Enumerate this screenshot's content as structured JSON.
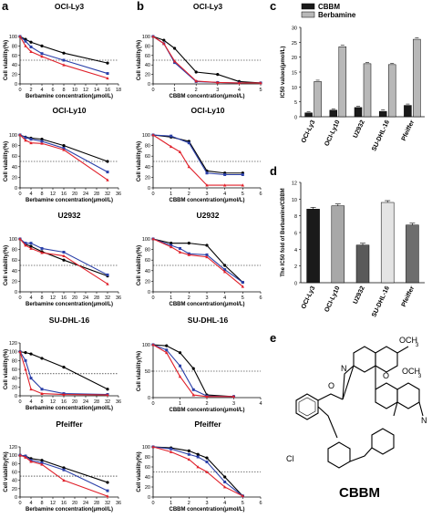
{
  "figure": {
    "panel_letters": [
      "a",
      "b",
      "c",
      "d",
      "e"
    ],
    "structure_label": "CBBM",
    "structure_substituents": {
      "methoxy": "OCH",
      "methoxy_subscript": "3",
      "nitrogen": "N",
      "oxygen": "O",
      "chlorine": "Cl"
    }
  },
  "colors": {
    "black": "#000000",
    "blue": "#2a3fa8",
    "red": "#e0202a",
    "bar_dark": "#1a1a1a",
    "bar_light": "#b8b8b8"
  },
  "chart_data": [
    {
      "id": "a1",
      "type": "line",
      "title": "OCI-Ly3",
      "xlabel": "Berbamine concentration(μmol/L)",
      "ylabel": "Cell viability(%)",
      "xlim": [
        0,
        18
      ],
      "ylim": [
        0,
        100
      ],
      "xticks": [
        0,
        2,
        4,
        6,
        8,
        10,
        12,
        14,
        16,
        18
      ],
      "yticks": [
        0,
        20,
        40,
        60,
        80,
        100
      ],
      "reference_line": 50,
      "series": [
        {
          "color": "black",
          "x": [
            0,
            1,
            2,
            4,
            8,
            16
          ],
          "y": [
            100,
            94,
            88,
            80,
            65,
            44
          ]
        },
        {
          "color": "blue",
          "x": [
            0,
            1,
            2,
            4,
            8,
            16
          ],
          "y": [
            100,
            90,
            78,
            64,
            50,
            22
          ]
        },
        {
          "color": "red",
          "x": [
            0,
            1,
            2,
            4,
            8,
            16
          ],
          "y": [
            100,
            80,
            68,
            58,
            40,
            12
          ]
        }
      ]
    },
    {
      "id": "b1",
      "type": "line",
      "title": "OCI-Ly3",
      "xlabel": "CBBM concentration(μmol/L)",
      "ylabel": "Cell viability(%)",
      "xlim": [
        0,
        5
      ],
      "ylim": [
        0,
        100
      ],
      "xticks": [
        0,
        1,
        2,
        3,
        4,
        5
      ],
      "yticks": [
        0,
        20,
        40,
        60,
        80,
        100
      ],
      "reference_line": 50,
      "series": [
        {
          "color": "black",
          "x": [
            0,
            0.5,
            1,
            2,
            3,
            4,
            5
          ],
          "y": [
            100,
            92,
            75,
            25,
            20,
            5,
            2
          ]
        },
        {
          "color": "blue",
          "x": [
            0,
            0.5,
            1,
            2,
            3,
            4,
            5
          ],
          "y": [
            100,
            85,
            45,
            5,
            3,
            2,
            2
          ]
        },
        {
          "color": "red",
          "x": [
            0,
            0.5,
            1,
            2,
            3,
            4,
            5
          ],
          "y": [
            100,
            85,
            48,
            6,
            3,
            2,
            2
          ]
        }
      ]
    },
    {
      "id": "a2",
      "type": "line",
      "title": "OCI-Ly10",
      "xlabel": "Berbamine concentration(μmol/L)",
      "ylabel": "Cell viability(%)",
      "xlim": [
        0,
        36
      ],
      "ylim": [
        0,
        100
      ],
      "xticks": [
        0,
        4,
        8,
        12,
        16,
        20,
        24,
        28,
        32,
        36
      ],
      "yticks": [
        0,
        20,
        40,
        60,
        80,
        100
      ],
      "reference_line": 50,
      "series": [
        {
          "color": "black",
          "x": [
            0,
            2,
            4,
            8,
            16,
            32
          ],
          "y": [
            100,
            96,
            94,
            92,
            80,
            50
          ]
        },
        {
          "color": "blue",
          "x": [
            0,
            2,
            4,
            8,
            16,
            32
          ],
          "y": [
            100,
            95,
            92,
            88,
            75,
            30
          ]
        },
        {
          "color": "red",
          "x": [
            0,
            2,
            4,
            8,
            16,
            32
          ],
          "y": [
            100,
            90,
            85,
            84,
            72,
            15
          ]
        }
      ]
    },
    {
      "id": "b2",
      "type": "line",
      "title": "OCI-Ly10",
      "xlabel": "CBBM concentration(μmol/L)",
      "ylabel": "Cell viability(%)",
      "xlim": [
        0,
        6
      ],
      "ylim": [
        0,
        100
      ],
      "xticks": [
        0,
        1,
        2,
        3,
        4,
        5,
        6
      ],
      "yticks": [
        0,
        20,
        40,
        60,
        80,
        100
      ],
      "reference_line": 50,
      "series": [
        {
          "color": "black",
          "x": [
            0,
            1,
            2,
            3,
            4,
            5
          ],
          "y": [
            100,
            96,
            88,
            32,
            28,
            28
          ]
        },
        {
          "color": "blue",
          "x": [
            0,
            1,
            2,
            3,
            4,
            5
          ],
          "y": [
            100,
            98,
            85,
            28,
            25,
            25
          ]
        },
        {
          "color": "red",
          "x": [
            0,
            1,
            1.5,
            2,
            3,
            4,
            5
          ],
          "y": [
            100,
            78,
            68,
            40,
            5,
            5,
            5
          ]
        }
      ]
    },
    {
      "id": "a3",
      "type": "line",
      "title": "U2932",
      "xlabel": "Berbamine concentration(μmol/L)",
      "ylabel": "Cell viability(%)",
      "xlim": [
        0,
        36
      ],
      "ylim": [
        0,
        100
      ],
      "xticks": [
        0,
        4,
        8,
        12,
        16,
        20,
        24,
        28,
        32,
        36
      ],
      "yticks": [
        0,
        20,
        40,
        60,
        80,
        100
      ],
      "reference_line": 50,
      "series": [
        {
          "color": "black",
          "x": [
            0,
            2,
            4,
            8,
            16,
            32
          ],
          "y": [
            100,
            90,
            86,
            76,
            60,
            30
          ]
        },
        {
          "color": "blue",
          "x": [
            0,
            2,
            4,
            8,
            16,
            32
          ],
          "y": [
            100,
            92,
            92,
            82,
            75,
            32
          ]
        },
        {
          "color": "red",
          "x": [
            0,
            2,
            4,
            8,
            16,
            32
          ],
          "y": [
            100,
            88,
            82,
            74,
            68,
            15
          ]
        }
      ]
    },
    {
      "id": "b3",
      "type": "line",
      "title": "U2932",
      "xlabel": "CBBM concentration(μmol/L)",
      "ylabel": "Cell viability(%)",
      "xlim": [
        0,
        6
      ],
      "ylim": [
        0,
        100
      ],
      "xticks": [
        0,
        1,
        2,
        3,
        4,
        5,
        6
      ],
      "yticks": [
        0,
        20,
        40,
        60,
        80,
        100
      ],
      "reference_line": 50,
      "series": [
        {
          "color": "black",
          "x": [
            0,
            1,
            2,
            3,
            4,
            5
          ],
          "y": [
            100,
            92,
            92,
            88,
            50,
            18
          ]
        },
        {
          "color": "blue",
          "x": [
            0,
            1,
            1.5,
            2,
            3,
            4,
            5
          ],
          "y": [
            100,
            88,
            82,
            72,
            70,
            42,
            18
          ]
        },
        {
          "color": "red",
          "x": [
            0,
            1,
            1.5,
            2,
            3,
            4,
            5
          ],
          "y": [
            100,
            85,
            75,
            70,
            66,
            38,
            10
          ]
        }
      ]
    },
    {
      "id": "a4",
      "type": "line",
      "title": "SU-DHL-16",
      "xlabel": "Berbamine concentration(μmol/L)",
      "ylabel": "Cell viability(%)",
      "xlim": [
        0,
        36
      ],
      "ylim": [
        0,
        120
      ],
      "xticks": [
        0,
        4,
        8,
        12,
        16,
        20,
        24,
        28,
        32,
        36
      ],
      "yticks": [
        0,
        20,
        40,
        60,
        80,
        100,
        120
      ],
      "reference_line": 50,
      "series": [
        {
          "color": "black",
          "x": [
            0,
            2,
            4,
            8,
            16,
            32
          ],
          "y": [
            100,
            98,
            95,
            85,
            65,
            15
          ]
        },
        {
          "color": "blue",
          "x": [
            0,
            2,
            4,
            8,
            16,
            32
          ],
          "y": [
            100,
            80,
            40,
            15,
            5,
            3
          ]
        },
        {
          "color": "red",
          "x": [
            0,
            2,
            4,
            8,
            16,
            32
          ],
          "y": [
            100,
            60,
            15,
            5,
            3,
            2
          ]
        }
      ]
    },
    {
      "id": "b4",
      "type": "line",
      "title": "SU-DHL-16",
      "xlabel": "CBBM concentration(μmol/L)",
      "ylabel": "Cell viability(%)",
      "xlim": [
        0,
        4
      ],
      "ylim": [
        0,
        100
      ],
      "xticks": [
        0,
        1,
        2,
        3,
        4
      ],
      "yticks": [
        0,
        50,
        100
      ],
      "reference_line": 50,
      "series": [
        {
          "color": "black",
          "x": [
            0,
            0.5,
            1,
            1.5,
            2,
            3
          ],
          "y": [
            100,
            98,
            85,
            55,
            5,
            2
          ]
        },
        {
          "color": "blue",
          "x": [
            0,
            0.5,
            1,
            1.5,
            2,
            3
          ],
          "y": [
            100,
            90,
            60,
            15,
            3,
            2
          ]
        },
        {
          "color": "red",
          "x": [
            0,
            0.5,
            1,
            1.5,
            2,
            3
          ],
          "y": [
            100,
            85,
            40,
            5,
            2,
            2
          ]
        }
      ]
    },
    {
      "id": "a5",
      "type": "line",
      "title": "Pfeiffer",
      "xlabel": "Berbamine concentration(μmol/L)",
      "ylabel": "Cell viability(%)",
      "xlim": [
        0,
        36
      ],
      "ylim": [
        0,
        120
      ],
      "xticks": [
        0,
        4,
        8,
        12,
        16,
        20,
        24,
        28,
        32,
        36
      ],
      "yticks": [
        0,
        20,
        40,
        60,
        80,
        100,
        120
      ],
      "reference_line": 50,
      "series": [
        {
          "color": "black",
          "x": [
            0,
            2,
            4,
            8,
            16,
            32
          ],
          "y": [
            100,
            98,
            92,
            88,
            70,
            35
          ]
        },
        {
          "color": "blue",
          "x": [
            0,
            2,
            4,
            8,
            16,
            32
          ],
          "y": [
            100,
            98,
            88,
            82,
            65,
            15
          ]
        },
        {
          "color": "red",
          "x": [
            0,
            2,
            4,
            8,
            16,
            32
          ],
          "y": [
            100,
            95,
            85,
            78,
            40,
            2
          ]
        }
      ]
    },
    {
      "id": "b5",
      "type": "line",
      "title": "Pfeiffer",
      "xlabel": "CBBM concentration(μmol/L)",
      "ylabel": "Cell viability(%)",
      "xlim": [
        0,
        6
      ],
      "ylim": [
        0,
        100
      ],
      "xticks": [
        0,
        1,
        2,
        3,
        4,
        5,
        6
      ],
      "yticks": [
        0,
        20,
        40,
        60,
        80,
        100
      ],
      "reference_line": 50,
      "series": [
        {
          "color": "black",
          "x": [
            0,
            1,
            2,
            2.5,
            3,
            4,
            5
          ],
          "y": [
            100,
            98,
            92,
            85,
            78,
            40,
            2
          ]
        },
        {
          "color": "blue",
          "x": [
            0,
            1,
            2,
            2.5,
            3,
            4,
            5
          ],
          "y": [
            100,
            96,
            85,
            80,
            70,
            30,
            2
          ]
        },
        {
          "color": "red",
          "x": [
            0,
            1,
            2,
            2.5,
            3,
            4,
            5
          ],
          "y": [
            100,
            90,
            75,
            60,
            50,
            20,
            2
          ]
        }
      ]
    },
    {
      "id": "c",
      "type": "bar",
      "xlabel": "",
      "ylabel": "IC50 values(μmol/L)",
      "categories": [
        "OCI-Ly3",
        "OCI-Ly10",
        "U2932",
        "SU-DHL-16",
        "Pfeiffer"
      ],
      "ylim": [
        0,
        30
      ],
      "yticks": [
        0,
        5,
        10,
        15,
        20,
        25,
        30
      ],
      "legend": "top",
      "series": [
        {
          "name": "CBBM",
          "color": "dark",
          "values": [
            1.3,
            2.2,
            3.1,
            1.8,
            3.8
          ]
        },
        {
          "name": "Berbamine",
          "color": "light",
          "values": [
            11.8,
            23.5,
            17.8,
            17.5,
            26.0
          ]
        }
      ]
    },
    {
      "id": "d",
      "type": "bar",
      "xlabel": "",
      "ylabel": "The IC50 fold of Berbamine/CBBM",
      "categories": [
        "OCI-Ly3",
        "OCI-Ly10",
        "U2932",
        "SU-DHL-16",
        "Pfeiffer"
      ],
      "ylim": [
        0,
        12
      ],
      "yticks": [
        0,
        2,
        4,
        6,
        8,
        10,
        12
      ],
      "series": [
        {
          "values": [
            8.8,
            9.2,
            4.5,
            9.6,
            6.9
          ]
        }
      ]
    }
  ]
}
